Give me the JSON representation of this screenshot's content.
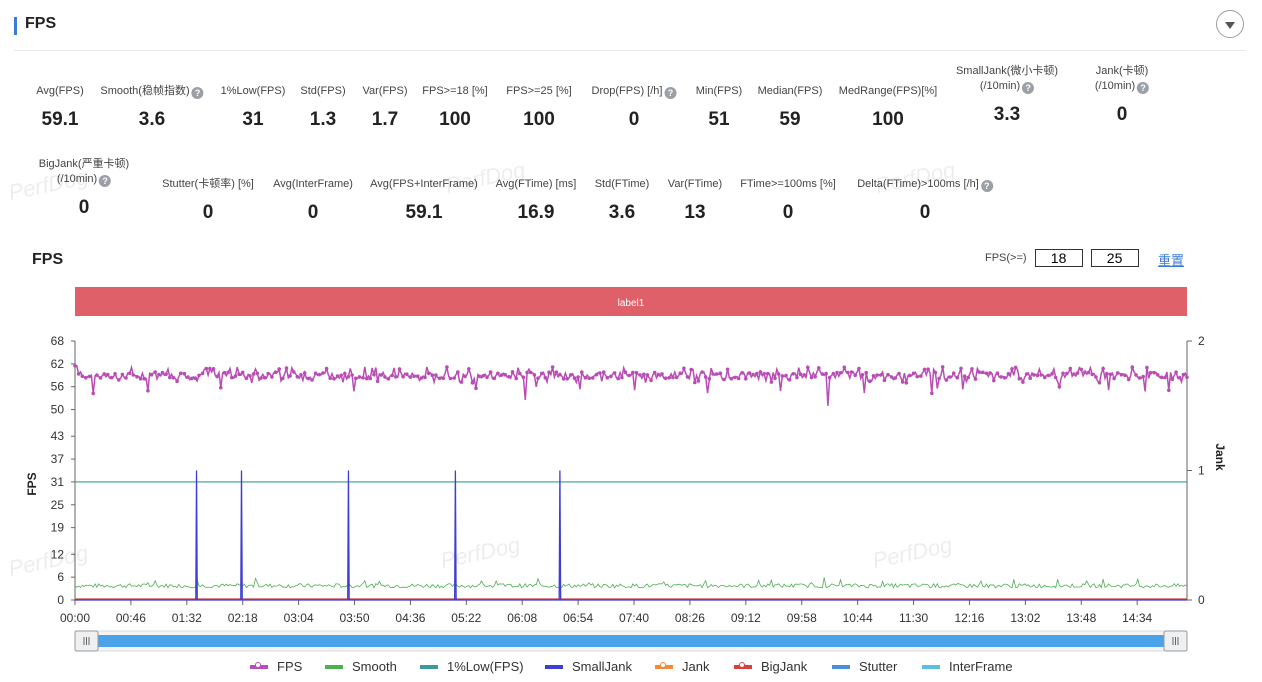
{
  "header": {
    "title": "FPS"
  },
  "metrics_row1": [
    {
      "label": "Avg(FPS)",
      "value": "59.1",
      "help": false
    },
    {
      "label": "Smooth(稳帧指数)",
      "value": "3.6",
      "help": true
    },
    {
      "label": "1%Low(FPS)",
      "value": "31",
      "help": false
    },
    {
      "label": "Std(FPS)",
      "value": "1.3",
      "help": false
    },
    {
      "label": "Var(FPS)",
      "value": "1.7",
      "help": false
    },
    {
      "label": "FPS>=18 [%]",
      "value": "100",
      "help": false
    },
    {
      "label": "FPS>=25 [%]",
      "value": "100",
      "help": false
    },
    {
      "label": "Drop(FPS) [/h]",
      "value": "0",
      "help": true
    },
    {
      "label": "Min(FPS)",
      "value": "51",
      "help": false
    },
    {
      "label": "Median(FPS)",
      "value": "59",
      "help": false
    },
    {
      "label": "MedRange(FPS)[%]",
      "value": "100",
      "help": false
    },
    {
      "label": "SmallJank(微小卡顿)",
      "label2": "(/10min)",
      "value": "3.3",
      "help": true
    },
    {
      "label": "Jank(卡顿)",
      "label2": "(/10min)",
      "value": "0",
      "help": true
    }
  ],
  "metrics_row2": [
    {
      "label": "BigJank(严重卡顿)",
      "label2": "(/10min)",
      "value": "0",
      "help": true
    },
    {
      "label": "Stutter(卡顿率) [%]",
      "value": "0",
      "help": false
    },
    {
      "label": "Avg(InterFrame)",
      "value": "0",
      "help": false
    },
    {
      "label": "Avg(FPS+InterFrame)",
      "value": "59.1",
      "help": false
    },
    {
      "label": "Avg(FTime) [ms]",
      "value": "16.9",
      "help": false
    },
    {
      "label": "Std(FTime)",
      "value": "3.6",
      "help": false
    },
    {
      "label": "Var(FTime)",
      "value": "13",
      "help": false
    },
    {
      "label": "FTime>=100ms [%]",
      "value": "0",
      "help": false
    },
    {
      "label": "Delta(FTime)>100ms [/h]",
      "value": "0",
      "help": true
    }
  ],
  "watermark": "PerfDog",
  "chart_title": "FPS",
  "fps_threshold": {
    "label": "FPS(>=)",
    "low": "18",
    "high": "25"
  },
  "reset_label": "重置",
  "band_label": "label1",
  "colors": {
    "fps": "#b94db5",
    "smooth": "#4caf50",
    "low1": "#3b9a9c",
    "smalljank": "#3e3ed1",
    "jank": "#f08a3c",
    "bigjank": "#d64040",
    "stutter": "#4a90d9",
    "interframe": "#5bc0de",
    "band": "#e0606a",
    "scroll": "#4aa3e8"
  },
  "chart_data": {
    "type": "line",
    "xlabel": "",
    "ylabel": "FPS",
    "y2label": "Jank",
    "x_ticks": [
      "00:00",
      "00:46",
      "01:32",
      "02:18",
      "03:04",
      "03:50",
      "04:36",
      "05:22",
      "06:08",
      "06:54",
      "07:40",
      "08:26",
      "09:12",
      "09:58",
      "10:44",
      "11:30",
      "12:16",
      "13:02",
      "13:48",
      "14:34"
    ],
    "y_ticks": [
      "68",
      "62",
      "56",
      "50",
      "43",
      "37",
      "31",
      "25",
      "19",
      "12",
      "6",
      "0"
    ],
    "y2_ticks": [
      "2",
      "1",
      "0"
    ],
    "ylim": [
      0,
      68
    ],
    "y2lim": [
      0,
      2
    ],
    "duration_seconds": 915,
    "series": [
      {
        "name": "FPS",
        "summary": {
          "avg": 59.1,
          "min": 51,
          "max": 62
        }
      },
      {
        "name": "Smooth",
        "summary": {
          "avg": 3.6
        }
      },
      {
        "name": "1%Low(FPS)",
        "summary": {
          "value": 31
        }
      },
      {
        "name": "SmallJank",
        "events_at_seconds": [
          100,
          137,
          225,
          313,
          399
        ],
        "value": 1
      },
      {
        "name": "Jank",
        "summary": {
          "value": 0
        }
      },
      {
        "name": "BigJank",
        "summary": {
          "value": 0
        }
      },
      {
        "name": "Stutter",
        "summary": {
          "value": 0
        }
      },
      {
        "name": "InterFrame",
        "summary": {
          "value": 0
        }
      }
    ],
    "legend": [
      "FPS",
      "Smooth",
      "1%Low(FPS)",
      "SmallJank",
      "Jank",
      "BigJank",
      "Stutter",
      "InterFrame"
    ],
    "legend_position": "bottom",
    "band": {
      "label": "label1"
    }
  }
}
